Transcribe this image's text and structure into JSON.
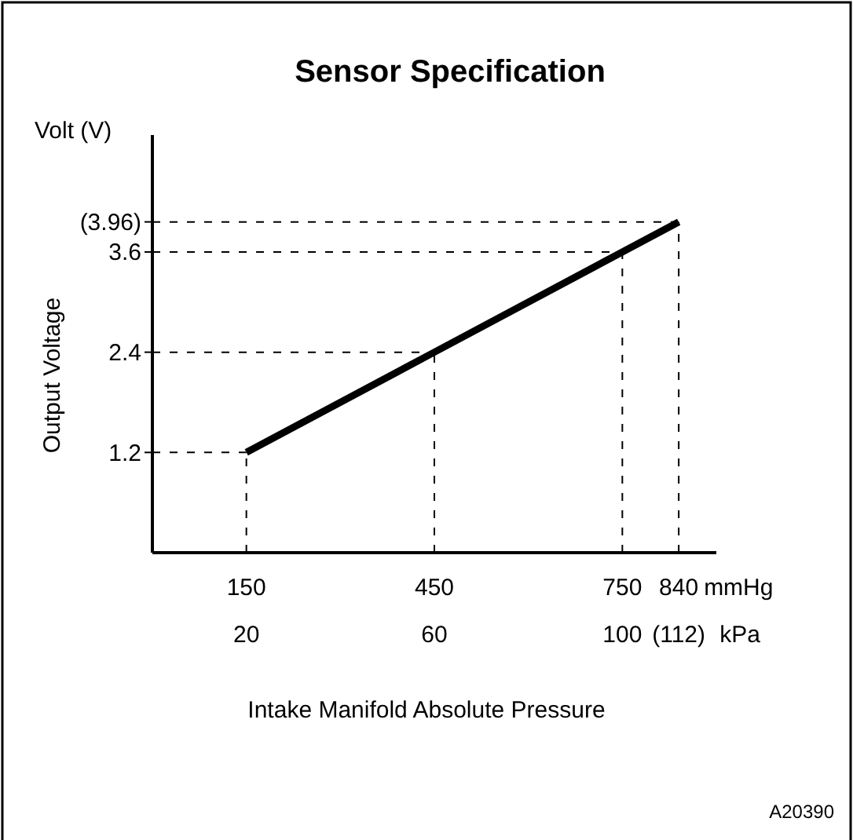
{
  "chart_data": {
    "type": "line",
    "title": "Sensor Specification",
    "xlabel": "mmHg",
    "x2label": "kPa",
    "ylabel": "Output Voltage",
    "x": [
      150,
      450,
      750,
      840
    ],
    "series": [
      {
        "color": "#000000",
        "values": [
          1.2,
          2.4,
          3.6,
          3.96
        ]
      }
    ],
    "xlim": [
      0,
      900
    ],
    "xticks": [
      150,
      450,
      750,
      840
    ],
    "x2lim": [
      0,
      120
    ],
    "x2ticks": [
      20,
      60,
      100,
      {
        "value": 112,
        "label": "(112)"
      }
    ],
    "ylim": [
      0,
      5
    ],
    "yticks": [
      1.2,
      2.4,
      3.6,
      {
        "value": 3.96,
        "label": "(3.96)"
      }
    ],
    "ref_lines": [
      {
        "axis": "y",
        "value": 1.2,
        "line_style": "dashed"
      },
      {
        "axis": "y",
        "value": 2.4,
        "line_style": "dashed"
      },
      {
        "axis": "y",
        "value": 3.6,
        "line_style": "dashed"
      },
      {
        "axis": "y",
        "value": 3.96,
        "line_style": "dashed"
      },
      {
        "axis": "x",
        "value": 150,
        "line_style": "dashed"
      },
      {
        "axis": "x",
        "value": 450,
        "line_style": "dashed"
      },
      {
        "axis": "x",
        "value": 750,
        "line_style": "dashed"
      },
      {
        "axis": "x",
        "value": 840,
        "line_style": "dashed"
      }
    ],
    "annotations": [
      "Volt (V)",
      "Intake Manifold Absolute Pressure",
      "A20390"
    ],
    "marker": "none",
    "line_style": "solid"
  }
}
